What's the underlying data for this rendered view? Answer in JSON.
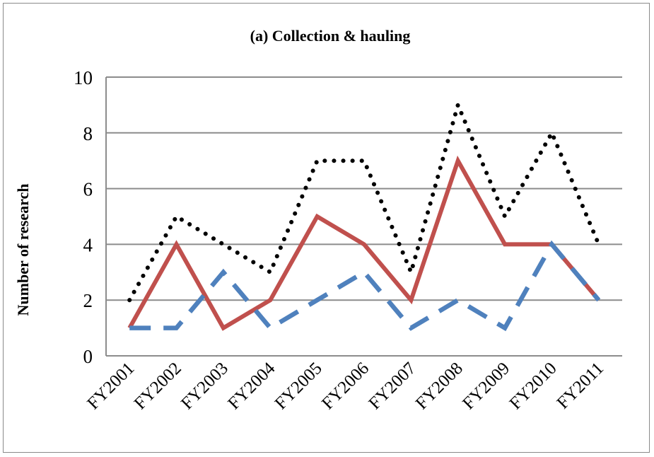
{
  "chart_data": {
    "type": "line",
    "title": "(a) Collection & hauling",
    "xlabel": "",
    "ylabel": "Number of research",
    "categories": [
      "FY2001",
      "FY2002",
      "FY2003",
      "FY2004",
      "FY2005",
      "FY2006",
      "FY2007",
      "FY2008",
      "FY2009",
      "FY2010",
      "FY2011"
    ],
    "ylim": [
      0,
      10
    ],
    "yticks": [
      0,
      2,
      4,
      6,
      8,
      10
    ],
    "grid": true,
    "legend": "none",
    "series": [
      {
        "values": [
          2,
          5,
          4,
          3,
          7,
          7,
          3,
          9,
          5,
          8,
          4
        ],
        "color": "#000000",
        "style": "dotted"
      },
      {
        "values": [
          1,
          4,
          1,
          2,
          5,
          4,
          2,
          7,
          4,
          4,
          2
        ],
        "color": "#c0504d",
        "style": "solid"
      },
      {
        "values": [
          1,
          1,
          3,
          1,
          2,
          3,
          1,
          2,
          1,
          4,
          2
        ],
        "color": "#4f81bd",
        "style": "dashed"
      }
    ]
  }
}
